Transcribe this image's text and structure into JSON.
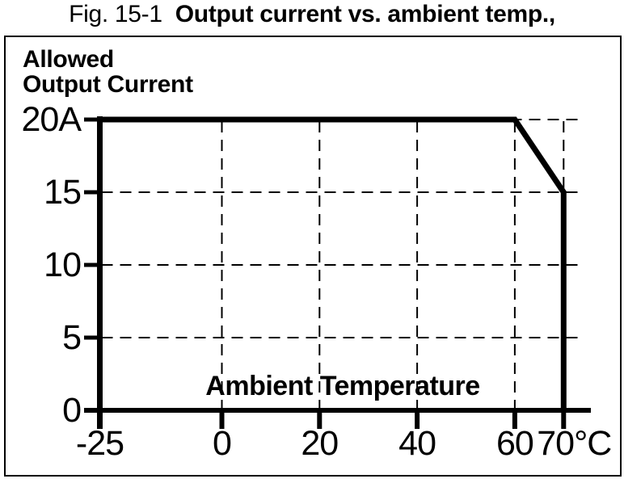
{
  "figure_caption": {
    "number": "Fig. 15-1",
    "title": "Output current vs. ambient temp.,"
  },
  "chart_data": {
    "type": "line",
    "title": "Output current vs. ambient temp.,",
    "ylabel_lines": [
      "Allowed",
      "Output Current"
    ],
    "ylabel": "Allowed Output Current",
    "xlabel": "Ambient Temperature",
    "x_unit": "°C",
    "y_unit": "A",
    "xlim": [
      -25,
      70
    ],
    "ylim": [
      0,
      20
    ],
    "x_ticks": [
      -25,
      0,
      20,
      40,
      60,
      70
    ],
    "x_tick_labels": [
      "-25",
      "0",
      "20",
      "40",
      "60",
      "70°C"
    ],
    "y_ticks": [
      0,
      5,
      10,
      15,
      20
    ],
    "y_tick_labels": [
      "0",
      "5",
      "10",
      "15",
      "20A"
    ],
    "grid": "dashed",
    "legend": "none",
    "line_color": "#000000",
    "series": [
      {
        "name": "Allowed Output Current",
        "points": [
          [
            -25,
            20
          ],
          [
            60,
            20
          ],
          [
            70,
            15
          ],
          [
            70,
            0
          ]
        ]
      }
    ]
  }
}
